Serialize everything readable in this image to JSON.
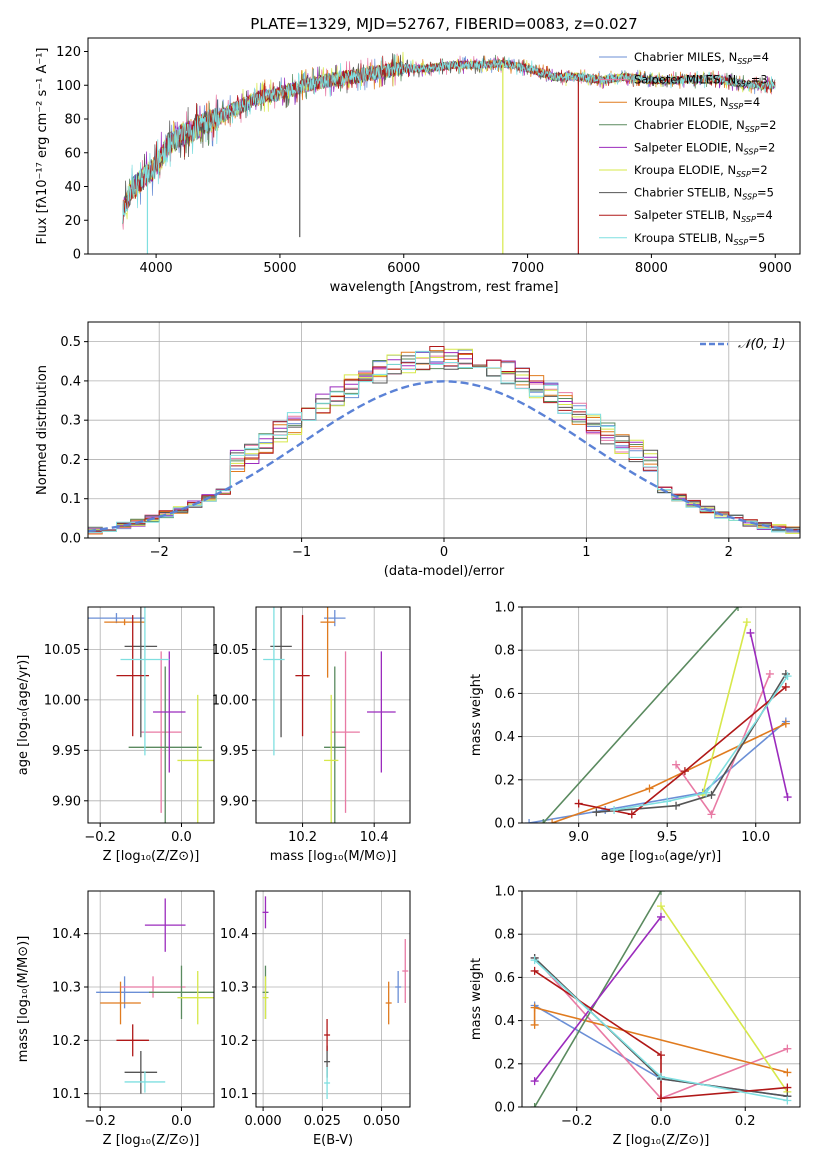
{
  "figure_title": "PLATE=1329, MJD=52767, FIBERID=0083, z=0.027",
  "legend": [
    {
      "label": "Chabrier MILES, N",
      "sub": "SSP",
      "tail": "=4",
      "color": "#6b8fd6"
    },
    {
      "label": "Salpeter MILES, N",
      "sub": "SSP",
      "tail": "=3",
      "color": "#e87aa4"
    },
    {
      "label": "Kroupa MILES, N",
      "sub": "SSP",
      "tail": "=4",
      "color": "#e07b1f"
    },
    {
      "label": "Chabrier ELODIE, N",
      "sub": "SSP",
      "tail": "=2",
      "color": "#5a8a5f"
    },
    {
      "label": "Salpeter ELODIE, N",
      "sub": "SSP",
      "tail": "=2",
      "color": "#9b2bbd"
    },
    {
      "label": "Kroupa ELODIE, N",
      "sub": "SSP",
      "tail": "=2",
      "color": "#d7e84a"
    },
    {
      "label": "Chabrier STELIB, N",
      "sub": "SSP",
      "tail": "=5",
      "color": "#555555"
    },
    {
      "label": "Salpeter STELIB, N",
      "sub": "SSP",
      "tail": "=4",
      "color": "#b01818"
    },
    {
      "label": "Kroupa STELIB, N",
      "sub": "SSP",
      "tail": "=5",
      "color": "#7fdfe0"
    }
  ],
  "chart_data": [
    {
      "id": "spectrum",
      "type": "line",
      "xlabel": "wavelength [Angstrom, rest frame]",
      "ylabel": "Flux [fλ10⁻¹⁷ erg cm⁻² s⁻¹ A⁻¹]",
      "xlim": [
        3450,
        9200
      ],
      "ylim": [
        0,
        128
      ],
      "xticks": [
        4000,
        5000,
        6000,
        7000,
        8000,
        9000
      ],
      "yticks": [
        0,
        20,
        40,
        60,
        80,
        100,
        120
      ],
      "envelope": {
        "x": [
          3730,
          3800,
          3900,
          4000,
          4100,
          4200,
          4300,
          4400,
          4500,
          4600,
          4700,
          4800,
          4900,
          5000,
          5200,
          5400,
          5600,
          5800,
          6000,
          6200,
          6400,
          6600,
          6800,
          7000,
          7200,
          7400,
          7600,
          7800,
          8000,
          8200,
          8500,
          8800,
          9000
        ],
        "y": [
          25,
          38,
          45,
          52,
          65,
          70,
          73,
          78,
          80,
          85,
          88,
          92,
          94,
          95,
          100,
          103,
          105,
          108,
          110,
          110,
          112,
          112,
          113,
          110,
          105,
          105,
          103,
          105,
          103,
          103,
          104,
          100,
          100
        ]
      },
      "dropouts": [
        {
          "x": 5160,
          "y": 10
        },
        {
          "x": 6800,
          "y": 0
        },
        {
          "x": 7410,
          "y": 0
        },
        {
          "x": 3930,
          "y": 0
        }
      ]
    },
    {
      "id": "residual_hist",
      "type": "histogram",
      "xlabel": "(data-model)/error",
      "ylabel": "Normed distribution",
      "xlim": [
        -2.5,
        2.5
      ],
      "ylim": [
        0,
        0.55
      ],
      "xticks": [
        -2,
        -1,
        0,
        1,
        2
      ],
      "yticks": [
        0.0,
        0.1,
        0.2,
        0.3,
        0.4,
        0.5
      ],
      "grid": true,
      "legend_entry": "𝒩(0, 1)",
      "bin_width": 0.1
    },
    {
      "id": "age_vs_Z",
      "type": "errorbar",
      "xlabel": "Z [log₁₀(Z/Z⊙)]",
      "ylabel": "age  [log₁₀(age/yr)]",
      "xlim": [
        -0.23,
        0.08
      ],
      "ylim": [
        9.878,
        10.092
      ],
      "xticks": [
        -0.2,
        0.0
      ],
      "yticks": [
        9.9,
        9.95,
        10.0,
        10.05
      ],
      "points": [
        {
          "x": -0.16,
          "xe": 0.07,
          "y": 10.081,
          "ye": 0.005
        },
        {
          "x": -0.05,
          "xe": 0.05,
          "y": 9.968,
          "ye": 0.08
        },
        {
          "x": -0.14,
          "xe": 0.05,
          "y": 10.077,
          "ye": 0.003
        },
        {
          "x": -0.04,
          "xe": 0.09,
          "y": 9.953,
          "ye": 0.08
        },
        {
          "x": -0.03,
          "xe": 0.04,
          "y": 9.988,
          "ye": 0.06
        },
        {
          "x": 0.04,
          "xe": 0.05,
          "y": 9.94,
          "ye": 0.065
        },
        {
          "x": -0.1,
          "xe": 0.04,
          "y": 10.053,
          "ye": 0.09
        },
        {
          "x": -0.12,
          "xe": 0.04,
          "y": 10.024,
          "ye": 0.06
        },
        {
          "x": -0.09,
          "xe": 0.06,
          "y": 10.04,
          "ye": 0.095
        }
      ]
    },
    {
      "id": "age_vs_mass",
      "type": "errorbar",
      "xlabel": "mass [log₁₀(M/M⊙)]",
      "ylabel": "",
      "xlim": [
        10.07,
        10.5
      ],
      "ylim": [
        9.878,
        10.092
      ],
      "xticks": [
        10.2,
        10.4
      ],
      "yticks": [
        9.9,
        9.95,
        10.0,
        10.05
      ],
      "points": [
        {
          "x": 10.29,
          "xe": 0.03,
          "y": 10.081,
          "ye": 0.008
        },
        {
          "x": 10.32,
          "xe": 0.04,
          "y": 9.968,
          "ye": 0.08
        },
        {
          "x": 10.27,
          "xe": 0.02,
          "y": 10.077,
          "ye": 0.055
        },
        {
          "x": 10.29,
          "xe": 0.03,
          "y": 9.953,
          "ye": 0.08
        },
        {
          "x": 10.42,
          "xe": 0.04,
          "y": 9.988,
          "ye": 0.06
        },
        {
          "x": 10.28,
          "xe": 0.02,
          "y": 9.94,
          "ye": 0.065
        },
        {
          "x": 10.14,
          "xe": 0.03,
          "y": 10.053,
          "ye": 0.09
        },
        {
          "x": 10.2,
          "xe": 0.02,
          "y": 10.024,
          "ye": 0.06
        },
        {
          "x": 10.12,
          "xe": 0.03,
          "y": 10.04,
          "ye": 0.095
        }
      ]
    },
    {
      "id": "weight_vs_age",
      "type": "line",
      "xlabel": "age  [log₁₀(age/yr)]",
      "ylabel": "mass weight",
      "xlim": [
        8.68,
        10.25
      ],
      "ylim": [
        0,
        1.0
      ],
      "xticks": [
        9.0,
        9.5,
        10.0
      ],
      "yticks": [
        0.0,
        0.2,
        0.4,
        0.6,
        0.8,
        1.0
      ],
      "series": [
        {
          "x": [
            8.72,
            9.15,
            9.7,
            10.17
          ],
          "y": [
            0.0,
            0.06,
            0.14,
            0.47
          ]
        },
        {
          "x": [
            9.55,
            9.75,
            10.08
          ],
          "y": [
            0.27,
            0.04,
            0.69
          ]
        },
        {
          "x": [
            8.85,
            9.4,
            10.17
          ],
          "y": [
            0.0,
            0.16,
            0.46
          ]
        },
        {
          "x": [
            8.8,
            9.9
          ],
          "y": [
            0.0,
            1.0
          ]
        },
        {
          "x": [
            9.97,
            10.18
          ],
          "y": [
            0.88,
            0.12
          ]
        },
        {
          "x": [
            9.7,
            9.95
          ],
          "y": [
            0.13,
            0.93
          ]
        },
        {
          "x": [
            9.1,
            9.55,
            9.75,
            10.17
          ],
          "y": [
            0.05,
            0.08,
            0.13,
            0.69
          ]
        },
        {
          "x": [
            9.0,
            9.3,
            9.6,
            10.17
          ],
          "y": [
            0.09,
            0.04,
            0.24,
            0.63
          ]
        },
        {
          "x": [
            9.2,
            9.5,
            9.72,
            10.18
          ],
          "y": [
            0.06,
            0.1,
            0.14,
            0.68
          ]
        }
      ]
    },
    {
      "id": "mass_vs_Z",
      "type": "errorbar",
      "xlabel": "Z [log₁₀(Z/Z⊙)]",
      "ylabel": "mass [log₁₀(M/M⊙)]",
      "xlim": [
        -0.23,
        0.08
      ],
      "ylim": [
        10.075,
        10.48
      ],
      "xticks": [
        -0.2,
        0.0
      ],
      "yticks": [
        10.1,
        10.2,
        10.3,
        10.4
      ],
      "points": [
        {
          "x": -0.14,
          "xe": 0.07,
          "y": 10.29,
          "ye": 0.03
        },
        {
          "x": -0.07,
          "xe": 0.08,
          "y": 10.3,
          "ye": 0.02
        },
        {
          "x": -0.15,
          "xe": 0.05,
          "y": 10.27,
          "ye": 0.04
        },
        {
          "x": 0.0,
          "xe": 0.08,
          "y": 10.29,
          "ye": 0.05
        },
        {
          "x": -0.04,
          "xe": 0.05,
          "y": 10.416,
          "ye": 0.05
        },
        {
          "x": 0.04,
          "xe": 0.05,
          "y": 10.28,
          "ye": 0.05
        },
        {
          "x": -0.1,
          "xe": 0.04,
          "y": 10.14,
          "ye": 0.04
        },
        {
          "x": -0.12,
          "xe": 0.04,
          "y": 10.2,
          "ye": 0.03
        },
        {
          "x": -0.09,
          "xe": 0.05,
          "y": 10.122,
          "ye": 0.02
        }
      ]
    },
    {
      "id": "mass_vs_EBV",
      "type": "errorbar",
      "xlabel": "E(B-V)",
      "ylabel": "",
      "xlim": [
        -0.003,
        0.062
      ],
      "ylim": [
        10.075,
        10.48
      ],
      "xticks": [
        0.0,
        0.025,
        0.05
      ],
      "yticks": [
        10.1,
        10.2,
        10.3,
        10.4
      ],
      "points": [
        {
          "x": 0.057,
          "y": 10.3,
          "ye": 0.03
        },
        {
          "x": 0.06,
          "y": 10.33,
          "ye": 0.06
        },
        {
          "x": 0.053,
          "y": 10.27,
          "ye": 0.04
        },
        {
          "x": 0.001,
          "y": 10.29,
          "ye": 0.05
        },
        {
          "x": 0.001,
          "y": 10.44,
          "ye": 0.03
        },
        {
          "x": 0.001,
          "y": 10.28,
          "ye": 0.04
        },
        {
          "x": 0.027,
          "y": 10.16,
          "ye": 0.03
        },
        {
          "x": 0.027,
          "y": 10.21,
          "ye": 0.03
        },
        {
          "x": 0.027,
          "y": 10.12,
          "ye": 0.03
        }
      ]
    },
    {
      "id": "weight_vs_Z",
      "type": "line",
      "xlabel": "Z [log₁₀(Z/Z⊙)]",
      "ylabel": "mass weight",
      "xlim": [
        -0.33,
        0.33
      ],
      "ylim": [
        0,
        1.0
      ],
      "xticks": [
        -0.2,
        0.0,
        0.2
      ],
      "yticks": [
        0.0,
        0.2,
        0.4,
        0.6,
        0.8,
        1.0
      ],
      "series": [
        {
          "x": [
            -0.3,
            0.0,
            0.3
          ],
          "y": [
            0.47,
            0.13,
            0.05
          ]
        },
        {
          "x": [
            -0.3,
            0.0,
            0.3
          ],
          "y": [
            0.69,
            0.04,
            0.27
          ]
        },
        {
          "x": [
            -0.3,
            -0.3,
            0.3
          ],
          "y": [
            0.38,
            0.46,
            0.16
          ]
        },
        {
          "x": [
            -0.3,
            0.0
          ],
          "y": [
            0.0,
            1.0
          ]
        },
        {
          "x": [
            -0.3,
            0.0
          ],
          "y": [
            0.12,
            0.88
          ]
        },
        {
          "x": [
            0.0,
            0.3
          ],
          "y": [
            0.93,
            0.07
          ]
        },
        {
          "x": [
            -0.3,
            0.0,
            0.3
          ],
          "y": [
            0.69,
            0.13,
            0.05
          ]
        },
        {
          "x": [
            -0.3,
            0.0,
            0.0,
            0.3
          ],
          "y": [
            0.63,
            0.24,
            0.04,
            0.09
          ]
        },
        {
          "x": [
            -0.3,
            0.0,
            0.3
          ],
          "y": [
            0.68,
            0.14,
            0.03
          ]
        }
      ]
    }
  ]
}
